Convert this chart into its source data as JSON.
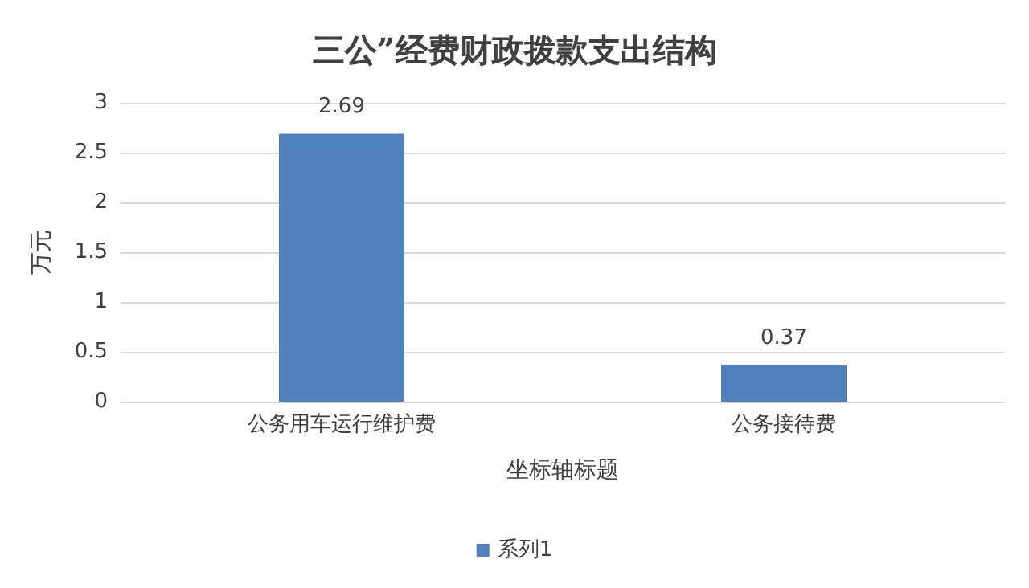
{
  "chart_data": {
    "type": "bar",
    "title": "三公”经费财政拨款支出结构",
    "xlabel": "坐标轴标题",
    "ylabel": "万元",
    "categories": [
      "公务用车运行维护费",
      "公务接待费"
    ],
    "series": [
      {
        "name": "系列1",
        "color": "#4f81bd",
        "values": [
          2.69,
          0.37
        ]
      }
    ],
    "ylim": [
      0,
      3
    ],
    "yticks": [
      0,
      0.5,
      1,
      1.5,
      2,
      2.5,
      3
    ],
    "grid": "y",
    "legend": "bottom",
    "data_labels": true
  }
}
